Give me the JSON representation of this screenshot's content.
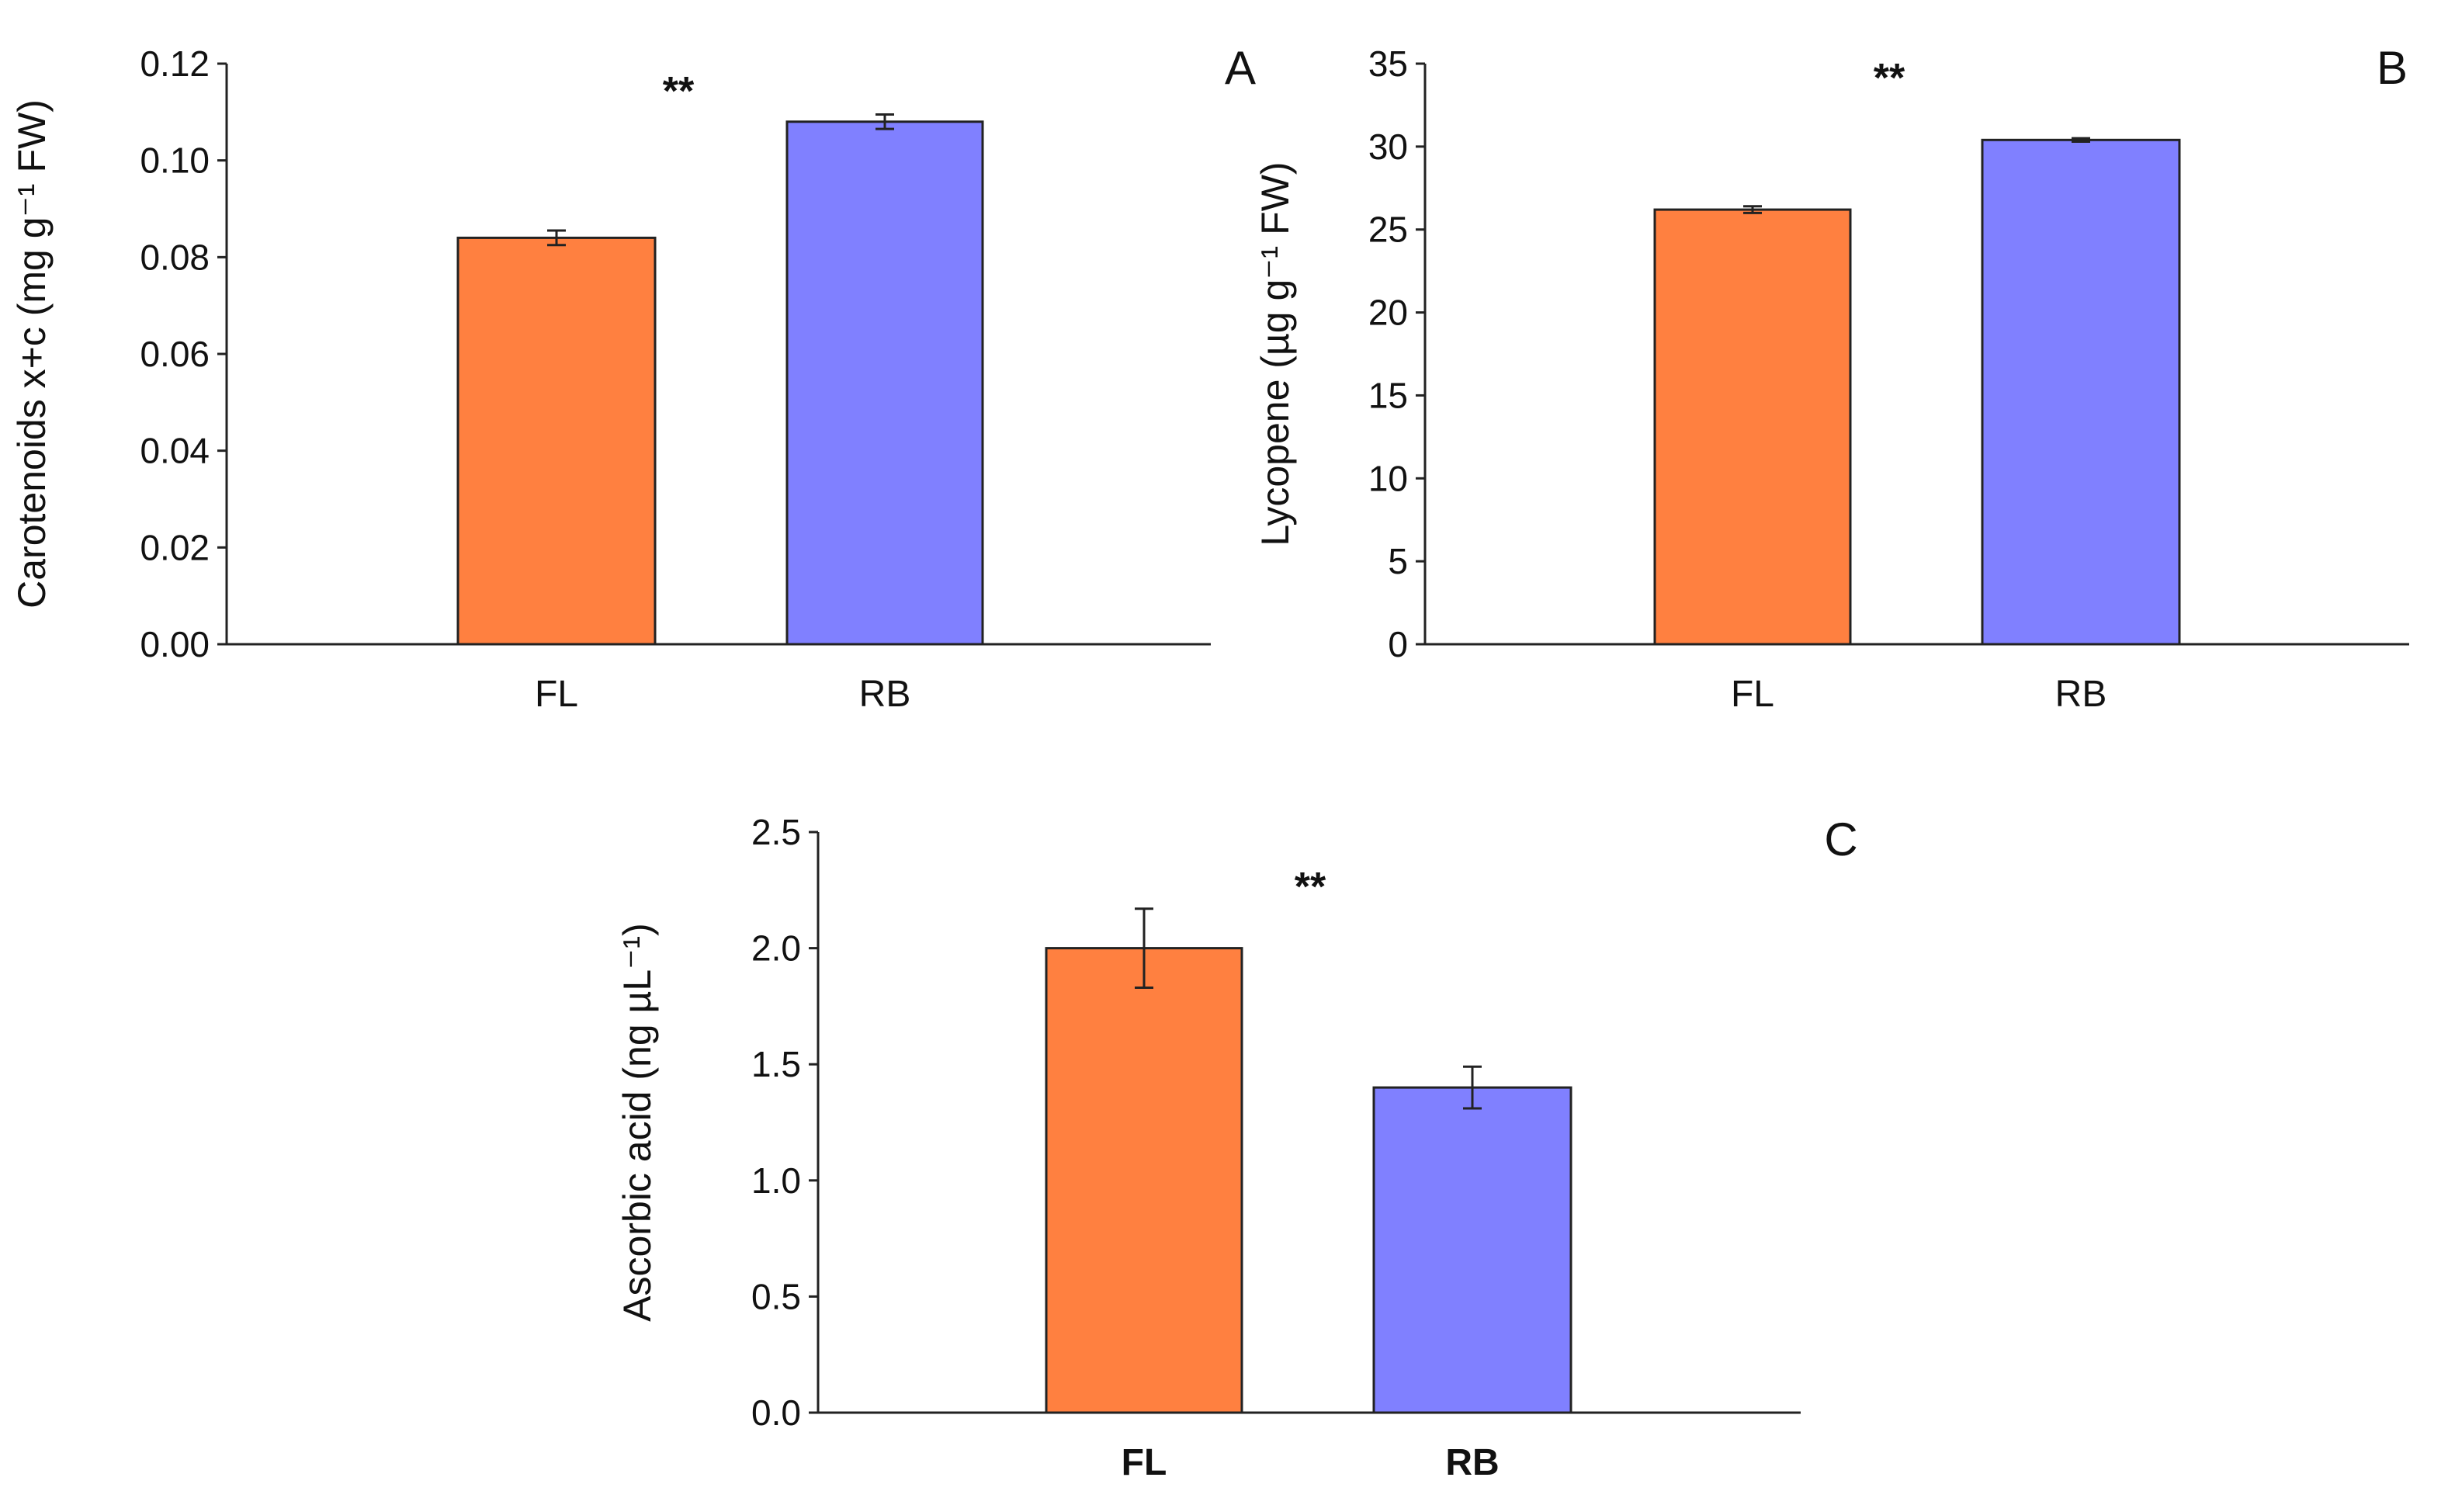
{
  "chart_data": [
    {
      "type": "bar",
      "panel": "A",
      "title": "",
      "xlabel": "",
      "ylabel": "Carotenoids x+c (mg g⁻¹ FW)",
      "categories": [
        "FL",
        "RB"
      ],
      "values": [
        0.084,
        0.108
      ],
      "errors": [
        0.0015,
        0.0015
      ],
      "colors": [
        "#FF8040",
        "#8080FF"
      ],
      "ylim": [
        0,
        0.12
      ],
      "yticks": [
        "0.00",
        "0.02",
        "0.04",
        "0.06",
        "0.08",
        "0.10",
        "0.12"
      ],
      "significance": "**",
      "category_bold": false,
      "grid": false
    },
    {
      "type": "bar",
      "panel": "B",
      "title": "",
      "xlabel": "",
      "ylabel": "Lycopene (µg g⁻¹ FW)",
      "categories": [
        "FL",
        "RB"
      ],
      "values": [
        26.2,
        30.4
      ],
      "errors": [
        0.2,
        0.1
      ],
      "colors": [
        "#FF8040",
        "#8080FF"
      ],
      "ylim": [
        0,
        35
      ],
      "yticks": [
        "0",
        "5",
        "10",
        "15",
        "20",
        "25",
        "30",
        "35"
      ],
      "significance": "**",
      "category_bold": false,
      "grid": false
    },
    {
      "type": "bar",
      "panel": "C",
      "title": "",
      "xlabel": "",
      "ylabel": "Ascorbic acid (ng µL⁻¹)",
      "categories": [
        "FL",
        "RB"
      ],
      "values": [
        2.0,
        1.4
      ],
      "errors": [
        0.17,
        0.09
      ],
      "colors": [
        "#FF8040",
        "#8080FF"
      ],
      "ylim": [
        0,
        2.5
      ],
      "yticks": [
        "0.0",
        "0.5",
        "1.0",
        "1.5",
        "2.0",
        "2.5"
      ],
      "significance": "**",
      "category_bold": true,
      "grid": false
    }
  ]
}
